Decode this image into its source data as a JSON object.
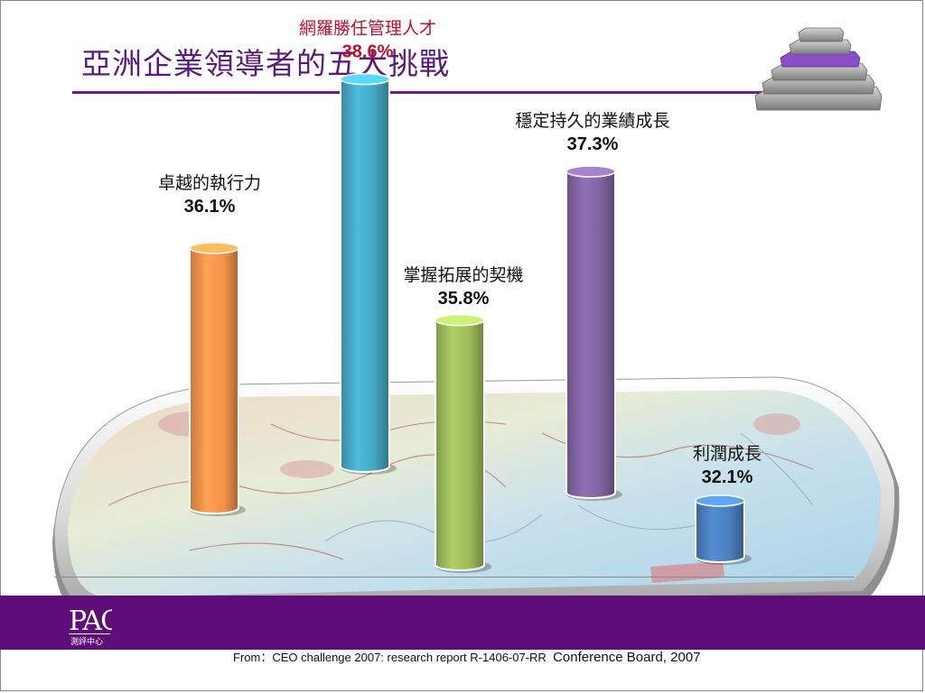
{
  "page": {
    "title": "亞洲企業領導者的五大挑戰",
    "source_prefix": "From：CEO challenge 2007: research report R-1406-07-RR",
    "source_suffix": "Conference Board, 2007",
    "logo_text": "PAC",
    "logo_subtext": "測評中心"
  },
  "colors": {
    "title": "#5b1a7e",
    "band": "#5e0c77",
    "highlight_label": "#c0102c"
  },
  "chart_data": {
    "type": "bar",
    "title": "",
    "unit": "%",
    "categories": [
      "卓越的執行力",
      "網羅勝任管理人才",
      "掌握拓展的契機",
      "穩定持久的業績成長",
      "利潤成長"
    ],
    "values": [
      36.1,
      38.6,
      35.8,
      37.3,
      32.1
    ],
    "value_labels": [
      "36.1%",
      "38.6%",
      "35.8%",
      "37.3%",
      "32.1%"
    ],
    "colors": [
      "#f4914a",
      "#45a7c4",
      "#9dbb59",
      "#8064a2",
      "#4a7fbc"
    ],
    "highlight_index": 1
  }
}
